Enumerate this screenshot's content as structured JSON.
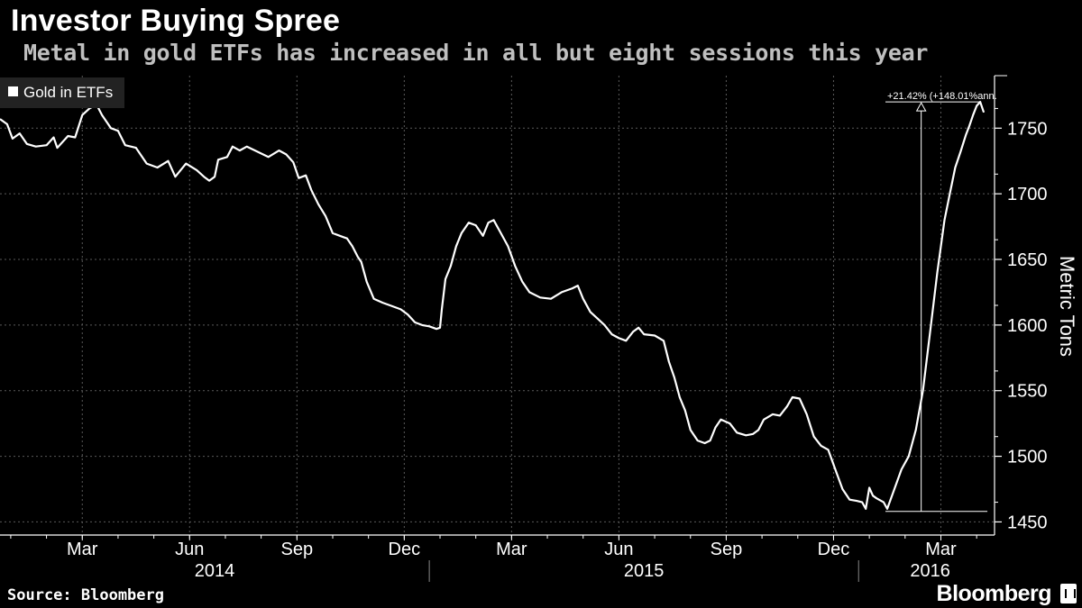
{
  "header": {
    "title": "Investor Buying Spree",
    "subtitle": "Metal in gold ETFs has increased in all but eight sessions this year"
  },
  "footer": {
    "source": "Source: Bloomberg",
    "brand": "Bloomberg"
  },
  "colors": {
    "background": "#000000",
    "line": "#ffffff",
    "grid": "#5a5a5a",
    "subtitle": "#bfbfbf"
  },
  "chart_data": {
    "type": "line",
    "title": "Investor Buying Spree",
    "subtitle": "Metal in gold ETFs has increased in all but eight sessions this year",
    "ylabel": "Metric Tons",
    "xlabel": "",
    "ylim": [
      1440,
      1790
    ],
    "xlim": [
      0,
      27.8
    ],
    "y_ticks": [
      1450,
      1500,
      1550,
      1600,
      1650,
      1700,
      1750
    ],
    "grid": true,
    "legend": {
      "position": "top-left",
      "entries": [
        "Gold in ETFs"
      ]
    },
    "x_ticks": [
      {
        "label": "Mar",
        "month": 2.3
      },
      {
        "label": "Jun",
        "month": 5.3
      },
      {
        "label": "Sep",
        "month": 8.3
      },
      {
        "label": "Dec",
        "month": 11.3
      },
      {
        "label": "Mar",
        "month": 14.3
      },
      {
        "label": "Jun",
        "month": 17.3
      },
      {
        "label": "Sep",
        "month": 20.3
      },
      {
        "label": "Dec",
        "month": 23.3
      },
      {
        "label": "Mar",
        "month": 26.3
      }
    ],
    "years": [
      {
        "label": "2014",
        "center": 6.0,
        "separator_after": 12.0
      },
      {
        "label": "2015",
        "center": 18.0,
        "separator_after": 24.0
      },
      {
        "label": "2016",
        "center": 26.0
      }
    ],
    "series": [
      {
        "name": "Gold in ETFs",
        "points": [
          [
            0.0,
            1757
          ],
          [
            0.2,
            1753
          ],
          [
            0.35,
            1742
          ],
          [
            0.55,
            1746
          ],
          [
            0.75,
            1738
          ],
          [
            1.0,
            1736
          ],
          [
            1.3,
            1737
          ],
          [
            1.5,
            1743
          ],
          [
            1.6,
            1735
          ],
          [
            1.9,
            1744
          ],
          [
            2.1,
            1743
          ],
          [
            2.3,
            1760
          ],
          [
            2.5,
            1765
          ],
          [
            2.7,
            1768
          ],
          [
            2.85,
            1760
          ],
          [
            3.1,
            1750
          ],
          [
            3.3,
            1748
          ],
          [
            3.5,
            1737
          ],
          [
            3.8,
            1735
          ],
          [
            4.1,
            1723
          ],
          [
            4.4,
            1720
          ],
          [
            4.7,
            1725
          ],
          [
            4.9,
            1713
          ],
          [
            5.2,
            1723
          ],
          [
            5.5,
            1718
          ],
          [
            5.7,
            1713
          ],
          [
            5.85,
            1710
          ],
          [
            6.0,
            1713
          ],
          [
            6.1,
            1726
          ],
          [
            6.35,
            1728
          ],
          [
            6.5,
            1736
          ],
          [
            6.7,
            1733
          ],
          [
            6.9,
            1736
          ],
          [
            7.2,
            1732
          ],
          [
            7.5,
            1728
          ],
          [
            7.8,
            1733
          ],
          [
            8.0,
            1730
          ],
          [
            8.2,
            1724
          ],
          [
            8.35,
            1712
          ],
          [
            8.55,
            1714
          ],
          [
            8.7,
            1703
          ],
          [
            8.9,
            1692
          ],
          [
            9.1,
            1683
          ],
          [
            9.3,
            1670
          ],
          [
            9.5,
            1668
          ],
          [
            9.7,
            1666
          ],
          [
            9.85,
            1660
          ],
          [
            10.0,
            1652
          ],
          [
            10.1,
            1648
          ],
          [
            10.25,
            1633
          ],
          [
            10.45,
            1620
          ],
          [
            10.7,
            1617
          ],
          [
            10.9,
            1615
          ],
          [
            11.2,
            1612
          ],
          [
            11.4,
            1608
          ],
          [
            11.6,
            1602
          ],
          [
            11.8,
            1600
          ],
          [
            12.0,
            1599
          ],
          [
            12.2,
            1597
          ],
          [
            12.3,
            1598
          ],
          [
            12.35,
            1612
          ],
          [
            12.45,
            1635
          ],
          [
            12.6,
            1645
          ],
          [
            12.75,
            1660
          ],
          [
            12.9,
            1670
          ],
          [
            13.1,
            1678
          ],
          [
            13.3,
            1676
          ],
          [
            13.5,
            1668
          ],
          [
            13.65,
            1678
          ],
          [
            13.8,
            1680
          ],
          [
            14.0,
            1670
          ],
          [
            14.2,
            1660
          ],
          [
            14.4,
            1645
          ],
          [
            14.6,
            1633
          ],
          [
            14.8,
            1625
          ],
          [
            15.1,
            1621
          ],
          [
            15.4,
            1620
          ],
          [
            15.7,
            1625
          ],
          [
            16.0,
            1628
          ],
          [
            16.15,
            1630
          ],
          [
            16.3,
            1620
          ],
          [
            16.5,
            1610
          ],
          [
            16.7,
            1605
          ],
          [
            16.9,
            1600
          ],
          [
            17.1,
            1593
          ],
          [
            17.3,
            1590
          ],
          [
            17.5,
            1588
          ],
          [
            17.7,
            1595
          ],
          [
            17.85,
            1598
          ],
          [
            18.0,
            1593
          ],
          [
            18.3,
            1592
          ],
          [
            18.55,
            1588
          ],
          [
            18.7,
            1572
          ],
          [
            18.85,
            1560
          ],
          [
            19.0,
            1545
          ],
          [
            19.15,
            1535
          ],
          [
            19.3,
            1520
          ],
          [
            19.5,
            1512
          ],
          [
            19.7,
            1510
          ],
          [
            19.85,
            1512
          ],
          [
            20.0,
            1522
          ],
          [
            20.15,
            1528
          ],
          [
            20.4,
            1525
          ],
          [
            20.6,
            1518
          ],
          [
            20.85,
            1516
          ],
          [
            21.05,
            1517
          ],
          [
            21.2,
            1520
          ],
          [
            21.35,
            1528
          ],
          [
            21.6,
            1532
          ],
          [
            21.8,
            1531
          ],
          [
            22.0,
            1538
          ],
          [
            22.15,
            1545
          ],
          [
            22.35,
            1544
          ],
          [
            22.55,
            1532
          ],
          [
            22.75,
            1515
          ],
          [
            22.95,
            1508
          ],
          [
            23.15,
            1505
          ],
          [
            23.35,
            1490
          ],
          [
            23.55,
            1475
          ],
          [
            23.75,
            1467
          ],
          [
            23.95,
            1466
          ],
          [
            24.1,
            1465
          ],
          [
            24.2,
            1460
          ],
          [
            24.3,
            1476
          ],
          [
            24.4,
            1470
          ],
          [
            24.5,
            1468
          ],
          [
            24.7,
            1465
          ],
          [
            24.8,
            1460
          ],
          [
            25.0,
            1475
          ],
          [
            25.2,
            1490
          ],
          [
            25.4,
            1500
          ],
          [
            25.6,
            1520
          ],
          [
            25.8,
            1550
          ],
          [
            26.0,
            1595
          ],
          [
            26.2,
            1640
          ],
          [
            26.4,
            1680
          ],
          [
            26.55,
            1700
          ],
          [
            26.7,
            1720
          ],
          [
            26.85,
            1732
          ],
          [
            27.0,
            1745
          ],
          [
            27.1,
            1752
          ],
          [
            27.2,
            1760
          ],
          [
            27.3,
            1767
          ],
          [
            27.4,
            1770
          ],
          [
            27.5,
            1762
          ]
        ]
      }
    ],
    "annotations": [
      {
        "text": "+21.42% (+148.01%ann.",
        "from": {
          "month": 24.75,
          "value": 1458
        },
        "to": {
          "month": 27.4,
          "value": 1770
        },
        "baseline_end_month": 27.6,
        "arrow_month": 25.75
      }
    ]
  }
}
